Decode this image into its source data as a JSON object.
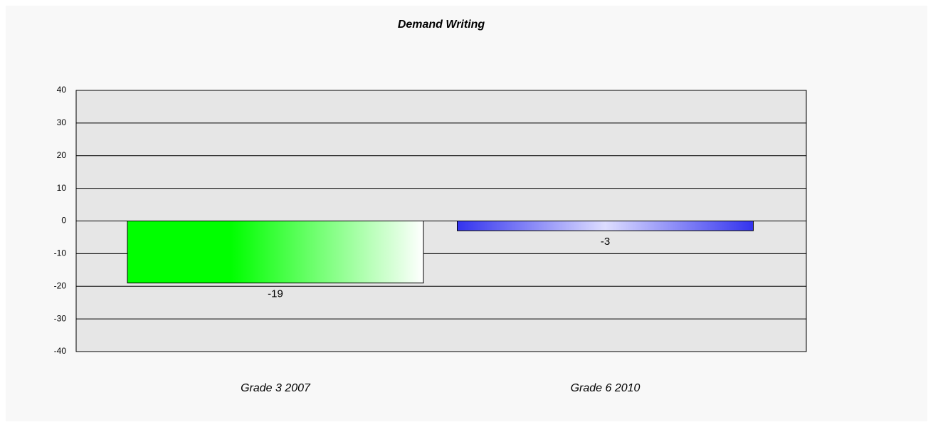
{
  "chart_data": {
    "type": "bar",
    "title": "Demand Writing",
    "categories": [
      "Grade 3 2007",
      "Grade 6 2010"
    ],
    "values": [
      -19,
      -3
    ],
    "colors": [
      "#00ff00",
      "#3333ee"
    ],
    "ylim": [
      -40,
      40
    ],
    "yticks": [
      -40,
      -30,
      -20,
      -10,
      0,
      10,
      20,
      30,
      40
    ],
    "grid": true
  }
}
